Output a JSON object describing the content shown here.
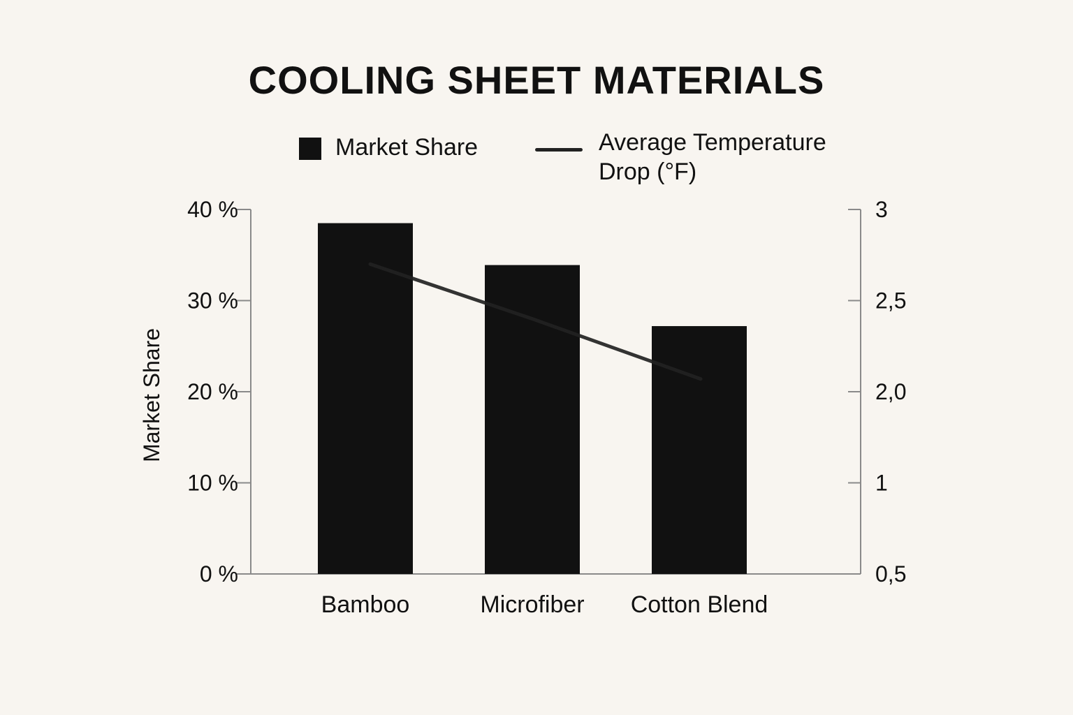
{
  "chart_data": {
    "type": "bar",
    "title": "COOLING SHEET MATERIALS",
    "categories": [
      "Bamboo",
      "Microfiber",
      "Cotton Blend"
    ],
    "series": [
      {
        "name": "Market Share",
        "type": "bar",
        "axis": "left",
        "values": [
          38.5,
          33.9,
          27.2
        ],
        "color": "#111111"
      },
      {
        "name": "Average Temperature Drop (°F)",
        "type": "line",
        "axis": "right",
        "values": [
          2.7,
          2.4,
          2.07
        ],
        "color": "#222222"
      }
    ],
    "xlabel": "",
    "ylabel": "Market Share",
    "ylim": [
      0,
      40
    ],
    "y_ticks": [
      "0 %",
      "10 %",
      "20 %",
      "30 %",
      "40 %"
    ],
    "y2_ticks": [
      "0,5",
      "1",
      "2,0",
      "2,5",
      "3"
    ],
    "legend": {
      "position": "top",
      "bar_label": "Market Share",
      "line_label": "Average Temperature Drop (°F)"
    },
    "grid": false
  }
}
